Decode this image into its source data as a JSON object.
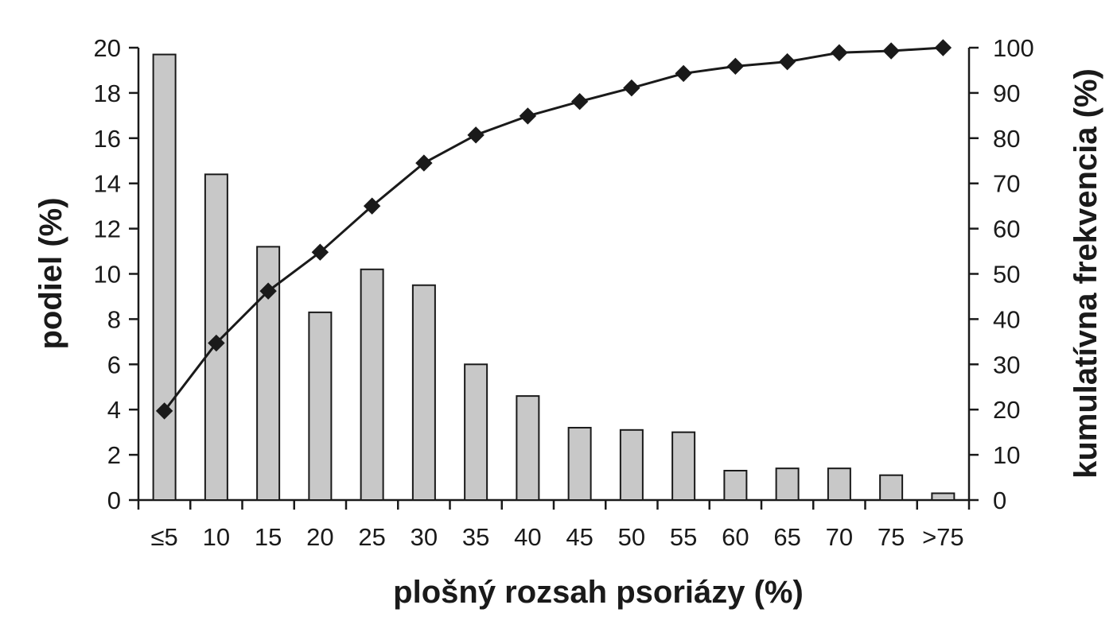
{
  "chart_data": {
    "type": "bar+line",
    "xlabel": "plošný rozsah psoriázy (%)",
    "ylabel_left": "podiel (%)",
    "ylabel_right": "kumulatívna frekvencia (%)",
    "categories": [
      "≤5",
      "10",
      "15",
      "20",
      "25",
      "30",
      "35",
      "40",
      "45",
      "50",
      "55",
      "60",
      "65",
      "70",
      "75",
      ">75"
    ],
    "left_axis": {
      "ylim": [
        0,
        20
      ],
      "ticks": [
        "0",
        "2",
        "4",
        "6",
        "8",
        "10",
        "12",
        "14",
        "16",
        "18",
        "20"
      ]
    },
    "right_axis": {
      "ylim": [
        0,
        100
      ],
      "ticks": [
        "0",
        "10",
        "20",
        "30",
        "40",
        "50",
        "60",
        "70",
        "80",
        "90",
        "100"
      ]
    },
    "series": [
      {
        "type": "bar",
        "axis": "left",
        "values": [
          19.7,
          14.4,
          11.2,
          8.3,
          10.2,
          9.5,
          6.0,
          4.6,
          3.2,
          3.1,
          3.0,
          1.3,
          1.4,
          1.4,
          1.1,
          0.3
        ]
      },
      {
        "type": "line",
        "axis": "right",
        "marker": "diamond",
        "values": [
          19.7,
          34.7,
          46.2,
          54.8,
          65.0,
          74.5,
          80.7,
          84.9,
          88.1,
          91.1,
          94.3,
          95.9,
          96.9,
          98.9,
          99.3,
          100
        ]
      }
    ],
    "colors": {
      "bar_fill": "#c8c8c8",
      "bar_stroke": "#1a1a1a",
      "line": "#1a1a1a",
      "axis": "#1a1a1a"
    },
    "grid": false,
    "legend": "none"
  }
}
